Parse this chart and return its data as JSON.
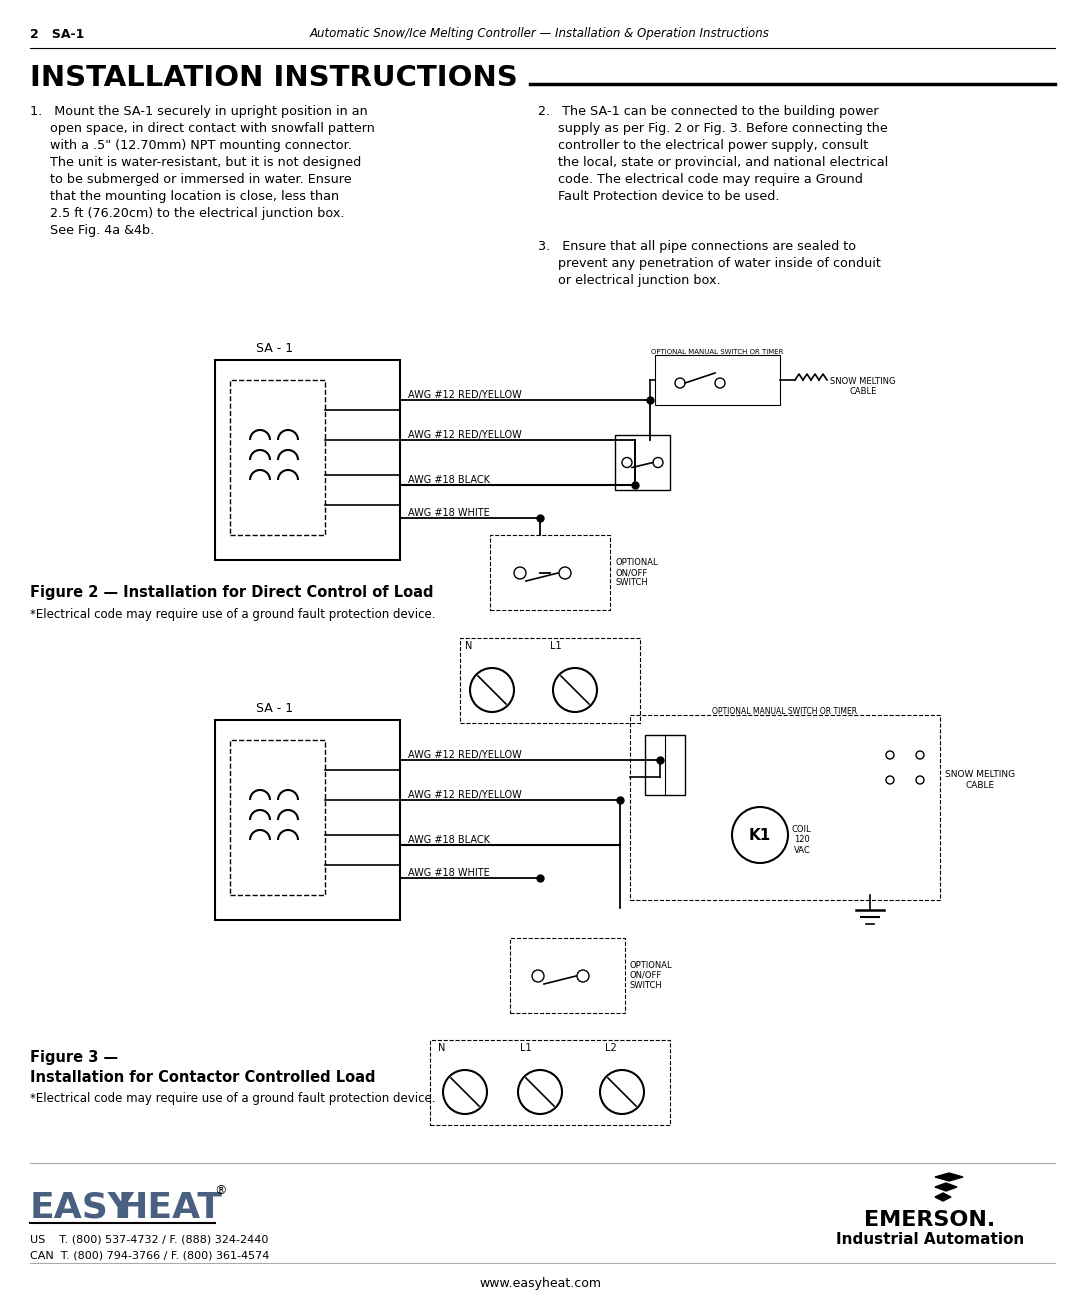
{
  "page_bg": "#ffffff",
  "header_text_left": "2   SA-1",
  "header_text_center": "Automatic Snow/Ice Melting Controller — Installation & Operation Instructions",
  "title": "INSTALLATION INSTRUCTIONS",
  "body_col1": "1.   Mount the SA-1 securely in upright position in an\n     open space, in direct contact with snowfall pattern\n     with a .5\" (12.70mm) NPT mounting connector.\n     The unit is water-resistant, but it is not designed\n     to be submerged or immersed in water. Ensure\n     that the mounting location is close, less than\n     2.5 ft (76.20cm) to the electrical junction box.\n     See Fig. 4a &4b.",
  "body_col2_p2": "2.   The SA-1 can be connected to the building power\n     supply as per Fig. 2 or Fig. 3. Before connecting the\n     controller to the electrical power supply, consult\n     the local, state or provincial, and national electrical\n     code. The electrical code may require a Ground\n     Fault Protection device to be used.",
  "body_col2_p3": "3.   Ensure that all pipe connections are sealed to\n     prevent any penetration of water inside of conduit\n     or electrical junction box.",
  "fig2_sa1": "SA - 1",
  "fig2_wires": [
    "AWG #12 RED/YELLOW",
    "AWG #12 RED/YELLOW",
    "AWG #18 BLACK",
    "AWG #18 WHITE"
  ],
  "fig2_opt_label": "OPTIONAL MANUAL SWITCH OR TIMER",
  "fig2_snow": "SNOW MELTING\nCABLE",
  "fig2_onoff": "OPTIONAL\nON/OFF\nSWITCH",
  "fig2_cap_bold": "Figure 2 — Installation for Direct Control of Load",
  "fig2_cap_normal": "*Electrical code may require use of a ground fault protection device.",
  "fig3_sa1": "SA - 1",
  "fig3_wires": [
    "AWG #12 RED/YELLOW",
    "AWG #12 RED/YELLOW",
    "AWG #18 BLACK",
    "AWG #18 WHITE"
  ],
  "fig3_opt_label": "OPTIONAL MANUAL SWITCH OR TIMER",
  "fig3_snow": "SNOW MELTING\nCABLE",
  "fig3_onoff": "OPTIONAL\nON/OFF\nSWITCH",
  "fig3_k1": "K1",
  "fig3_coil": "COIL\n120\nVAC",
  "fig3_cap_bold1": "Figure 3 —",
  "fig3_cap_bold2": "Installation for Contactor Controlled Load",
  "fig3_cap_normal": "*Electrical code may require use of a ground fault protection device.",
  "footer_us": "US    T. (800) 537-4732 / F. (888) 324-2440",
  "footer_can": "CAN  T. (800) 794-3766 / F. (800) 361-4574",
  "footer_emerson": "EMERSON.",
  "footer_emerson_sub": "Industrial Automation",
  "footer_web": "www.easyheat.com"
}
